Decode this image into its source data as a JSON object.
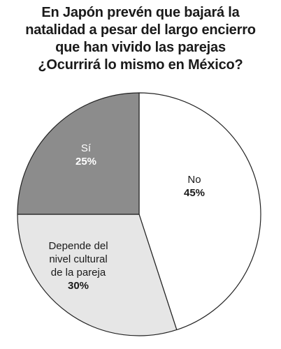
{
  "chart_data": {
    "type": "pie",
    "title_lines": [
      "En Japón prevén que bajará la",
      "natalidad a pesar del largo encierro",
      "que han vivido las parejas",
      "¿Ocurrirá lo mismo en México?"
    ],
    "start_angle_deg": 0,
    "direction": "clockwise",
    "slices": [
      {
        "label_lines": [
          "No"
        ],
        "value": 45,
        "value_label": "45%",
        "color": "#ffffff",
        "label_color": "#1a1a1a"
      },
      {
        "label_lines": [
          "Depende del",
          "nivel cultural",
          "de la pareja"
        ],
        "value": 30,
        "value_label": "30%",
        "color": "#e6e6e6",
        "label_color": "#1a1a1a"
      },
      {
        "label_lines": [
          "Sí"
        ],
        "value": 25,
        "value_label": "25%",
        "color": "#8c8c8c",
        "label_color": "#ffffff"
      }
    ],
    "stroke_color": "#222222"
  }
}
